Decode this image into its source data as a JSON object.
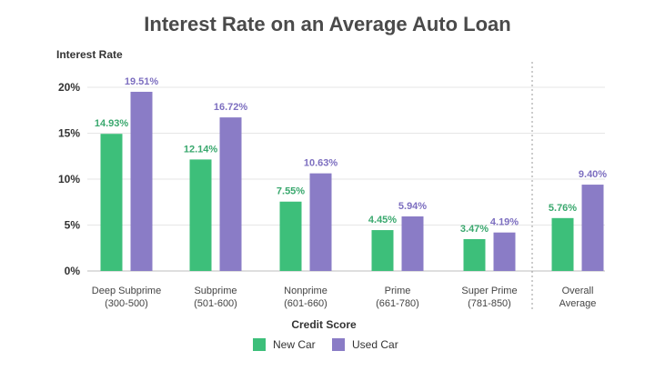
{
  "chart_data": {
    "type": "bar",
    "title": "Interest Rate on an Average Auto Loan",
    "ylabel": "Interest Rate",
    "xlabel": "Credit Score",
    "ylim": [
      0,
      20
    ],
    "yticks": [
      "0%",
      "5%",
      "10%",
      "15%",
      "20%"
    ],
    "ytick_values": [
      0,
      5,
      10,
      15,
      20
    ],
    "grid": true,
    "legend_position": "bottom",
    "categories": [
      [
        "Deep Subprime",
        "(300-500)"
      ],
      [
        "Subprime",
        "(501-600)"
      ],
      [
        "Nonprime",
        "(601-660)"
      ],
      [
        "Prime",
        "(661-780)"
      ],
      [
        "Super Prime",
        "(781-850)"
      ],
      [
        "Overall",
        "Average"
      ]
    ],
    "series": [
      {
        "name": "New Car",
        "color": "#3dbf7a",
        "values": [
          14.93,
          12.14,
          7.55,
          4.45,
          3.47,
          5.76
        ],
        "labels": [
          "14.93%",
          "12.14%",
          "7.55%",
          "4.45%",
          "3.47%",
          "5.76%"
        ]
      },
      {
        "name": "Used Car",
        "color": "#8a7cc6",
        "values": [
          19.51,
          16.72,
          10.63,
          5.94,
          4.19,
          9.4
        ],
        "labels": [
          "19.51%",
          "16.72%",
          "10.63%",
          "5.94%",
          "4.19%",
          "9.40%"
        ]
      }
    ],
    "label_colors": {
      "New Car": "#3aa86e",
      "Used Car": "#7d6fc0"
    },
    "separator_before_last": true
  }
}
